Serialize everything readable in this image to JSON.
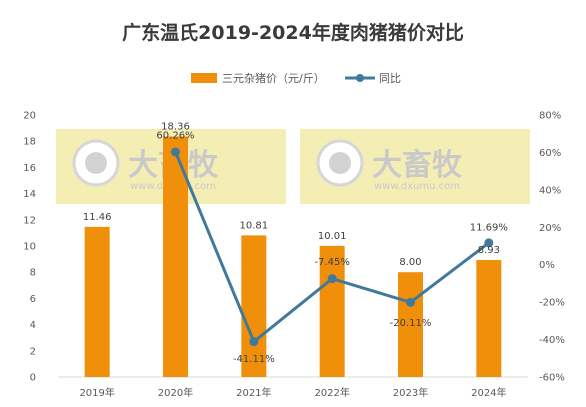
{
  "chart_data": {
    "type": "bar",
    "title": "广东温氏2019-2024年度肉猪猪价对比",
    "categories": [
      "2019年",
      "2020年",
      "2021年",
      "2022年",
      "2023年",
      "2024年"
    ],
    "series": [
      {
        "name": "三元杂猪价（元/斤）",
        "type": "bar",
        "axis": "left",
        "color": "#f0900a",
        "values": [
          11.46,
          18.36,
          10.81,
          10.01,
          8.0,
          8.93
        ],
        "labels": [
          "11.46",
          "18.36",
          "10.81",
          "10.01",
          "8.00",
          "8.93"
        ]
      },
      {
        "name": "同比",
        "type": "line",
        "axis": "right",
        "color": "#41799b",
        "values": [
          null,
          60.26,
          -41.11,
          -7.45,
          -20.11,
          11.69
        ],
        "labels": [
          "",
          "60.26%",
          "-41.11%",
          "-7.45%",
          "-20.11%",
          "11.69%"
        ]
      }
    ],
    "y_left": {
      "min": 0,
      "max": 20,
      "step": 2,
      "ticks": [
        "0",
        "2",
        "4",
        "6",
        "8",
        "10",
        "12",
        "14",
        "16",
        "18",
        "20"
      ]
    },
    "y_right": {
      "min": -60,
      "max": 80,
      "step": 20,
      "ticks": [
        "-60%",
        "-40%",
        "-20%",
        "0%",
        "20%",
        "40%",
        "60%",
        "80%"
      ]
    },
    "legend_position": "top-center",
    "grid": false
  },
  "watermark": {
    "brand": "大畜牧",
    "url": "www.dxumu.com",
    "color": "#f5eeb4",
    "count": 2
  }
}
